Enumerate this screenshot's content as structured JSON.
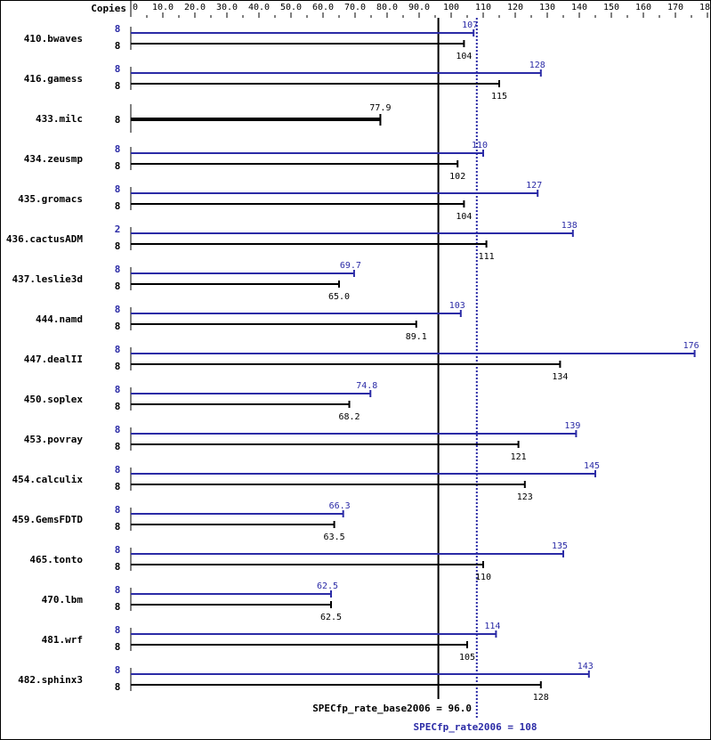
{
  "header": {
    "copies_label": "Copies"
  },
  "colors": {
    "base": "#000000",
    "peak": "#2b2ba6"
  },
  "summary": {
    "base_label": "SPECfp_rate_base2006 = 96.0",
    "peak_label": "SPECfp_rate2006 = 108",
    "base_value": 96.0,
    "peak_value": 108
  },
  "axis": {
    "min": 0,
    "max": 180,
    "ticks": [
      {
        "value": 0,
        "label": "0"
      },
      {
        "value": 10,
        "label": "10.0"
      },
      {
        "value": 20,
        "label": "20.0"
      },
      {
        "value": 30,
        "label": "30.0"
      },
      {
        "value": 40,
        "label": "40.0"
      },
      {
        "value": 50,
        "label": "50.0"
      },
      {
        "value": 60,
        "label": "60.0"
      },
      {
        "value": 70,
        "label": "70.0"
      },
      {
        "value": 80,
        "label": "80.0"
      },
      {
        "value": 90,
        "label": "90.0"
      },
      {
        "value": 100,
        "label": "100"
      },
      {
        "value": 110,
        "label": "110"
      },
      {
        "value": 120,
        "label": "120"
      },
      {
        "value": 130,
        "label": "130"
      },
      {
        "value": 140,
        "label": "140"
      },
      {
        "value": 150,
        "label": "150"
      },
      {
        "value": 160,
        "label": "160"
      },
      {
        "value": 170,
        "label": "170"
      },
      {
        "value": 180,
        "label": "180"
      }
    ]
  },
  "chart_data": {
    "type": "bar",
    "orientation": "horizontal",
    "title": "",
    "xlabel": "",
    "ylabel": "",
    "xlim": [
      0,
      180
    ],
    "grid": false,
    "legend": "none (peak in blue above, base in black below)",
    "categories": [
      "410.bwaves",
      "416.gamess",
      "433.milc",
      "434.zeusmp",
      "435.gromacs",
      "436.cactusADM",
      "437.leslie3d",
      "444.namd",
      "447.dealII",
      "450.soplex",
      "453.povray",
      "454.calculix",
      "459.GemsFDTD",
      "465.tonto",
      "470.lbm",
      "481.wrf",
      "482.sphinx3"
    ],
    "series": [
      {
        "name": "Peak (SPECfp_rate2006)",
        "color": "#2b2ba6",
        "values": [
          107,
          128,
          null,
          110,
          127,
          138,
          69.7,
          103,
          176,
          74.8,
          139,
          145,
          66.3,
          135,
          62.5,
          114,
          143
        ],
        "labels": [
          "107",
          "128",
          "",
          "110",
          "127",
          "138",
          "69.7",
          "103",
          "176",
          "74.8",
          "139",
          "145",
          "66.3",
          "135",
          "62.5",
          "114",
          "143"
        ],
        "copies": [
          "8",
          "8",
          "",
          "8",
          "8",
          "2",
          "8",
          "8",
          "8",
          "8",
          "8",
          "8",
          "8",
          "8",
          "8",
          "8",
          "8"
        ]
      },
      {
        "name": "Base (SPECfp_rate_base2006)",
        "color": "#000000",
        "values": [
          104,
          115,
          77.9,
          102,
          104,
          111,
          65.0,
          89.1,
          134,
          68.2,
          121,
          123,
          63.5,
          110,
          62.5,
          105,
          128
        ],
        "labels": [
          "104",
          "115",
          "77.9",
          "102",
          "104",
          "111",
          "65.0",
          "89.1",
          "134",
          "68.2",
          "121",
          "123",
          "63.5",
          "110",
          "62.5",
          "105",
          "128"
        ],
        "copies": [
          "8",
          "8",
          "8",
          "8",
          "8",
          "8",
          "8",
          "8",
          "8",
          "8",
          "8",
          "8",
          "8",
          "8",
          "8",
          "8",
          "8"
        ]
      }
    ],
    "reference_lines": [
      {
        "name": "SPECfp_rate_base2006",
        "value": 96.0,
        "style": "solid",
        "color": "#000000"
      },
      {
        "name": "SPECfp_rate2006",
        "value": 108,
        "style": "dotted",
        "color": "#2b2ba6"
      }
    ],
    "annotations": [
      "SPECfp_rate_base2006 = 96.0",
      "SPECfp_rate2006 = 108"
    ]
  }
}
